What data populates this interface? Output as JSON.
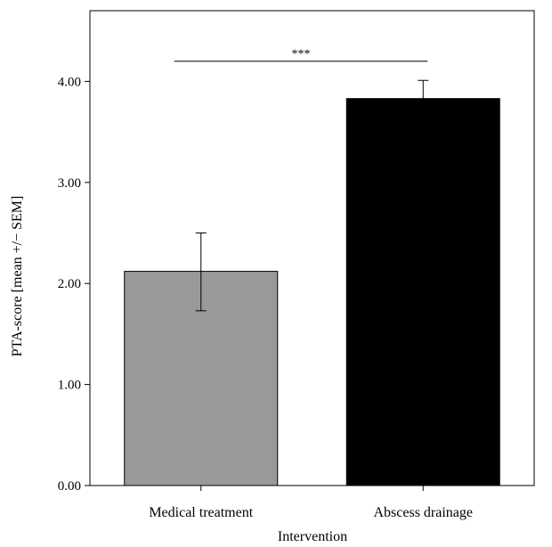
{
  "chart_data": {
    "type": "bar",
    "categories": [
      "Medical treatment",
      "Abscess drainage"
    ],
    "values": [
      2.12,
      3.83
    ],
    "error_lower": [
      1.73,
      3.66
    ],
    "error_upper": [
      2.5,
      4.01
    ],
    "bar_colors": [
      "#999999",
      "#000000"
    ],
    "xlabel": "Intervention",
    "ylabel": "PTA-score [mean +/− SEM]",
    "ylim": [
      0,
      4.7
    ],
    "yticks": [
      0,
      1,
      2,
      3,
      4
    ],
    "ytick_labels": [
      "0.00",
      "1.00",
      "2.00",
      "3.00",
      "4.00"
    ],
    "significance": {
      "label": "***",
      "between": [
        0,
        1
      ],
      "level": 4.2
    },
    "grid": false,
    "legend": "none"
  }
}
